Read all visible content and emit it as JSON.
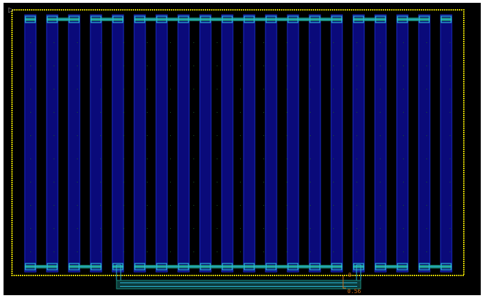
{
  "canvas": {
    "background": "#000000",
    "boundary_color": "#d8d000",
    "finger_color": "#0a0a7a",
    "finger_edge": "#1a2cc8",
    "contact_color": "#2ab8d8",
    "metal_color": "#1a8a7a",
    "ruler_color": "#d0701a"
  },
  "ruler": {
    "start_label": "0",
    "end_label": "0.56"
  },
  "icons": {
    "cursor": "pointer-arrow-icon"
  }
}
